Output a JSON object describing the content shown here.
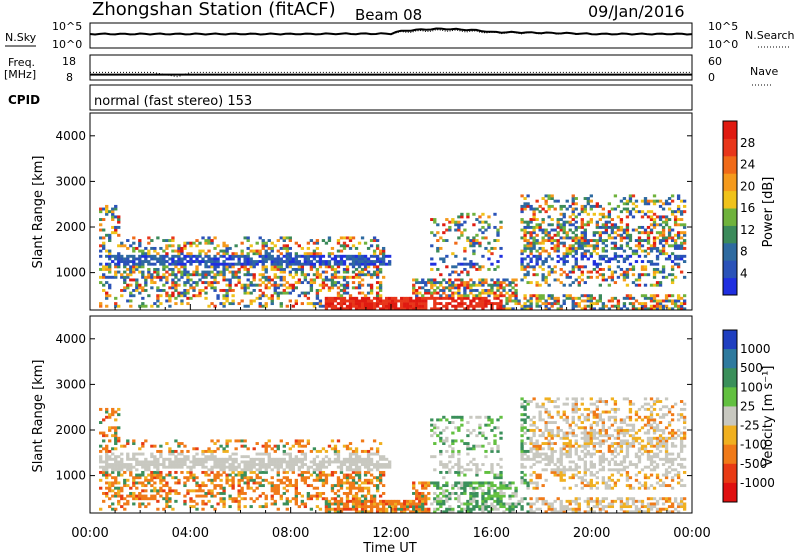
{
  "header": {
    "station": "Zhongshan Station (fitACF)",
    "beam": "Beam 08",
    "date": "09/Jan/2016"
  },
  "panels": {
    "nsky_label": "N.Sky",
    "nsearch_label": "N.Search",
    "noise_ticks": [
      "10^5",
      "10^0"
    ],
    "freq_label_1": "Freq.",
    "freq_label_2": "[MHz]",
    "freq_ticks": [
      "18",
      "8"
    ],
    "nave_label": "Nave",
    "nave_ticks": [
      "60",
      "0"
    ],
    "cpid_label": "CPID",
    "cpid_text": "normal (fast stereo) 153"
  },
  "axes": {
    "ylabel": "Slant Range [km]",
    "xlabel": "Time UT",
    "yticks": [
      "1000",
      "2000",
      "3000",
      "4000"
    ],
    "xticks": [
      "00:00",
      "04:00",
      "08:00",
      "12:00",
      "16:00",
      "20:00",
      "00:00"
    ]
  },
  "colorbars": {
    "power": {
      "label": "Power [dB]",
      "ticks": [
        "4",
        "8",
        "12",
        "16",
        "20",
        "24",
        "28"
      ],
      "colors": [
        "#1f2fe0",
        "#2a52b8",
        "#2e6aa0",
        "#3b8a5a",
        "#6fb23c",
        "#f0c21a",
        "#f59a1c",
        "#f06a18",
        "#e8361a",
        "#e01a10"
      ]
    },
    "velocity": {
      "label": "Velocity [m s⁻¹]",
      "ticks": [
        "1000",
        "500",
        "100",
        "25",
        "-25",
        "-100",
        "-500",
        "-1000"
      ],
      "colors": [
        "#1f3fc0",
        "#2e7a9e",
        "#3a8f5a",
        "#62c040",
        "#c8c8c0",
        "#f0b020",
        "#f07a18",
        "#e83a14",
        "#e01010"
      ]
    }
  },
  "chart_data": [
    {
      "type": "line",
      "title": "N.Sky / N.Search",
      "x": [
        "00:00",
        "04:00",
        "08:00",
        "12:00",
        "14:00",
        "16:00",
        "20:00",
        "00:00"
      ],
      "series": [
        {
          "name": "N.Sky",
          "values": [
            1000,
            1000,
            1000,
            1200,
            20000,
            3000,
            1000,
            1000
          ]
        },
        {
          "name": "N.Search",
          "values": [
            1000,
            1000,
            1000,
            1200,
            8000,
            2000,
            1000,
            1000
          ]
        }
      ],
      "ylim": [
        "10^0",
        "10^5"
      ],
      "yscale": "log"
    },
    {
      "type": "line",
      "title": "Freq. / Nave",
      "x": [
        "00:00",
        "02:30",
        "03:30",
        "04:00",
        "08:00",
        "16:00",
        "00:00"
      ],
      "series": [
        {
          "name": "Freq.",
          "values": [
            11,
            11,
            9,
            11,
            11,
            11,
            11
          ]
        },
        {
          "name": "Nave",
          "values": [
            10,
            10,
            10,
            10,
            10,
            10,
            10
          ]
        }
      ],
      "ylim": [
        8,
        18
      ]
    },
    {
      "type": "heatmap",
      "title": "Power [dB]",
      "x_range_hours": [
        0,
        24
      ],
      "y_range_km": [
        180,
        4500
      ],
      "regions": [
        {
          "t0": 0.5,
          "t1": 11.5,
          "r0": 300,
          "r1": 2000,
          "level": "mixed"
        },
        {
          "t0": 9.5,
          "t1": 13.5,
          "r0": 180,
          "r1": 400,
          "level": 28
        },
        {
          "t0": 13.0,
          "t1": 17.0,
          "r0": 250,
          "r1": 800,
          "level": 28
        },
        {
          "t0": 17.5,
          "t1": 23.5,
          "r0": 800,
          "r1": 2600,
          "level": "mixed"
        }
      ]
    },
    {
      "type": "heatmap",
      "title": "Velocity [m s⁻¹]",
      "x_range_hours": [
        0,
        24
      ],
      "y_range_km": [
        180,
        4500
      ],
      "regions": [
        {
          "t0": 2.0,
          "t1": 12.0,
          "r0": 300,
          "r1": 1800,
          "level": -100
        },
        {
          "t0": 14.0,
          "t1": 17.5,
          "r0": 300,
          "r1": 900,
          "level": 100
        },
        {
          "t0": 17.5,
          "t1": 23.5,
          "r0": 900,
          "r1": 2600,
          "level": 25
        }
      ]
    }
  ]
}
